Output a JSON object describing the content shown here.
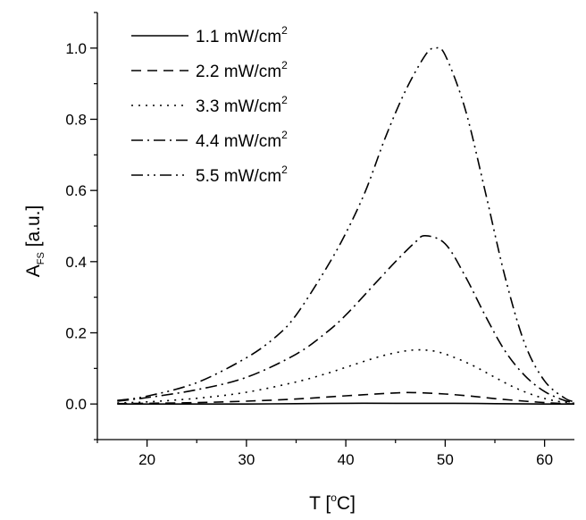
{
  "chart_data": {
    "type": "line",
    "title": "",
    "xlabel": {
      "main": "T [",
      "sup": "o",
      "rest": "C]"
    },
    "ylabel": {
      "main": "A",
      "sub": "FS",
      "rest": " [a.u.]"
    },
    "xlim": [
      15,
      63
    ],
    "ylim": [
      -0.1,
      1.1
    ],
    "x_ticks": [
      20,
      30,
      40,
      50,
      60
    ],
    "x_tick_labels": [
      "20",
      "30",
      "40",
      "50",
      "60"
    ],
    "y_ticks": [
      0.0,
      0.2,
      0.4,
      0.6,
      0.8,
      1.0
    ],
    "y_tick_labels": [
      "0.0",
      "0.2",
      "0.4",
      "0.6",
      "0.8",
      "1.0"
    ],
    "grid": false,
    "legend_position": "top-left",
    "series": [
      {
        "name": "1.1 mW/cm",
        "name_sup": "2",
        "style": "solid",
        "color": "#000000",
        "x": [
          17,
          20,
          25,
          30,
          35,
          40,
          45,
          47,
          50,
          55,
          60,
          63
        ],
        "y": [
          0.0,
          0.0,
          0.0,
          0.0,
          0.001,
          0.002,
          0.002,
          0.002,
          0.002,
          0.001,
          0.0,
          0.0
        ]
      },
      {
        "name": "2.2 mW/cm",
        "name_sup": "2",
        "style": "dash",
        "color": "#000000",
        "x": [
          17,
          20,
          25,
          30,
          35,
          40,
          45,
          47,
          50,
          53,
          55,
          58,
          60,
          62,
          63
        ],
        "y": [
          0.001,
          0.002,
          0.004,
          0.008,
          0.014,
          0.023,
          0.031,
          0.032,
          0.028,
          0.021,
          0.015,
          0.008,
          0.004,
          0.001,
          0.0
        ]
      },
      {
        "name": "3.3 mW/cm",
        "name_sup": "2",
        "style": "dot",
        "color": "#000000",
        "x": [
          17,
          20,
          25,
          30,
          35,
          38,
          40,
          43,
          45,
          47,
          49,
          51,
          53,
          55,
          57,
          59,
          61,
          63
        ],
        "y": [
          0.003,
          0.006,
          0.016,
          0.033,
          0.062,
          0.085,
          0.103,
          0.13,
          0.144,
          0.152,
          0.148,
          0.13,
          0.105,
          0.075,
          0.046,
          0.024,
          0.009,
          0.002
        ]
      },
      {
        "name": "4.4 mW/cm",
        "name_sup": "2",
        "style": "dashdot",
        "color": "#000000",
        "x": [
          17,
          20,
          25,
          30,
          35,
          38,
          40,
          43,
          45,
          47,
          48,
          50,
          52,
          54,
          56,
          58,
          60,
          62,
          63
        ],
        "y": [
          0.008,
          0.018,
          0.04,
          0.075,
          0.14,
          0.2,
          0.25,
          0.34,
          0.4,
          0.455,
          0.473,
          0.45,
          0.36,
          0.25,
          0.15,
          0.08,
          0.035,
          0.01,
          0.004
        ]
      },
      {
        "name": "5.5 mW/cm",
        "name_sup": "2",
        "style": "dashdotdot",
        "color": "#000000",
        "x": [
          17,
          20,
          25,
          30,
          33,
          35,
          38,
          40,
          42,
          44,
          46,
          48,
          49,
          50,
          52,
          54,
          56,
          58,
          60,
          62,
          63
        ],
        "y": [
          0.01,
          0.022,
          0.06,
          0.13,
          0.19,
          0.25,
          0.38,
          0.48,
          0.6,
          0.75,
          0.88,
          0.98,
          1.0,
          0.98,
          0.83,
          0.6,
          0.36,
          0.17,
          0.065,
          0.017,
          0.006
        ]
      }
    ]
  }
}
